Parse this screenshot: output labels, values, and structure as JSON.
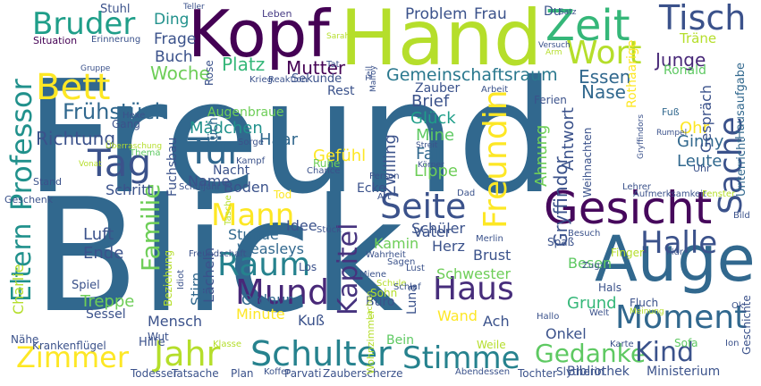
{
  "cloud": {
    "words": [
      {
        "text": "Freund",
        "color": "#31688e"
      },
      {
        "text": "Blick",
        "color": "#31688e"
      },
      {
        "text": "Hand",
        "color": "#b5de2b"
      },
      {
        "text": "Kopf",
        "color": "#440154"
      },
      {
        "text": "Auge",
        "color": "#31688e"
      },
      {
        "text": "Gesicht",
        "color": "#46085c"
      },
      {
        "text": "Zeit",
        "color": "#35b779"
      },
      {
        "text": "Tisch",
        "color": "#3b528b"
      },
      {
        "text": "Wort",
        "color": "#b5de2b"
      },
      {
        "text": "Bruder",
        "color": "#1f9e89"
      },
      {
        "text": "Bett",
        "color": "#fde725"
      },
      {
        "text": "Tag",
        "color": "#3b528b"
      },
      {
        "text": "Tür",
        "color": "#31688e"
      },
      {
        "text": "Seite",
        "color": "#3b528b"
      },
      {
        "text": "Halle",
        "color": "#3b528b"
      },
      {
        "text": "Mann",
        "color": "#fde725"
      },
      {
        "text": "Raum",
        "color": "#26828e"
      },
      {
        "text": "Mund",
        "color": "#482878"
      },
      {
        "text": "Haus",
        "color": "#472d7b"
      },
      {
        "text": "Moment",
        "color": "#31688e"
      },
      {
        "text": "Zimmer",
        "color": "#fde725"
      },
      {
        "text": "Jahr",
        "color": "#b5de2b"
      },
      {
        "text": "Schulter",
        "color": "#26828e"
      },
      {
        "text": "Stimme",
        "color": "#26828e"
      },
      {
        "text": "Gedanke",
        "color": "#5ec962"
      },
      {
        "text": "Kind",
        "color": "#3b528b"
      },
      {
        "text": "Freundin",
        "color": "#fde725"
      },
      {
        "text": "Sache",
        "color": "#3b528b"
      },
      {
        "text": "Kapitel",
        "color": "#46337e"
      },
      {
        "text": "Professor",
        "color": "#21918c"
      },
      {
        "text": "Eltern",
        "color": "#21918c"
      },
      {
        "text": "Familie",
        "color": "#6ece58"
      },
      {
        "text": "Frühstück",
        "color": "#31688e"
      },
      {
        "text": "Gemeinschaftsraum",
        "color": "#2a788e"
      },
      {
        "text": "Woche",
        "color": "#6ece58"
      },
      {
        "text": "Platz",
        "color": "#35b779"
      },
      {
        "text": "Mutter",
        "color": "#440154"
      },
      {
        "text": "Junge",
        "color": "#482878"
      },
      {
        "text": "Essen",
        "color": "#31688e"
      },
      {
        "text": "Nase",
        "color": "#31688e"
      },
      {
        "text": "Problem",
        "color": "#3b528b"
      },
      {
        "text": "Frau",
        "color": "#3b528b"
      },
      {
        "text": "Frage",
        "color": "#3b528b"
      },
      {
        "text": "Ding",
        "color": "#21918c"
      },
      {
        "text": "Buch",
        "color": "#3b528b"
      },
      {
        "text": "Stuhl",
        "color": "#3b528b"
      },
      {
        "text": "Leben",
        "color": "#443983"
      },
      {
        "text": "Teller",
        "color": "#3b528b"
      },
      {
        "text": "Richtung",
        "color": "#3b528b"
      },
      {
        "text": "Mädchen",
        "color": "#21918c"
      },
      {
        "text": "Haar",
        "color": "#31688e"
      },
      {
        "text": "Brief",
        "color": "#3b528b"
      },
      {
        "text": "Glück",
        "color": "#1f9e89"
      },
      {
        "text": "Mine",
        "color": "#5ec962"
      },
      {
        "text": "Gefühl",
        "color": "#fde725"
      },
      {
        "text": "Fall",
        "color": "#31688e"
      },
      {
        "text": "Lippe",
        "color": "#6ece58"
      },
      {
        "text": "Zwilling",
        "color": "#3b528b"
      },
      {
        "text": "Antwort",
        "color": "#3b528b"
      },
      {
        "text": "Ahnung",
        "color": "#6ece58"
      },
      {
        "text": "Gryffindor",
        "color": "#3b528b"
      },
      {
        "text": "Ohr",
        "color": "#fde725"
      },
      {
        "text": "Ginny",
        "color": "#31688e"
      },
      {
        "text": "Leute",
        "color": "#31688e"
      },
      {
        "text": "Gespräch",
        "color": "#3b528b"
      },
      {
        "text": "Hausaufgabe",
        "color": "#31688e"
      },
      {
        "text": "Ronald",
        "color": "#5ec962"
      },
      {
        "text": "Rothaarige",
        "color": "#fde725"
      },
      {
        "text": "Träne",
        "color": "#b5de2b"
      },
      {
        "text": "Unterricht",
        "color": "#31688e"
      },
      {
        "text": "Fuchsbau",
        "color": "#3b528b"
      },
      {
        "text": "Schritt",
        "color": "#3b528b"
      },
      {
        "text": "Name",
        "color": "#3b528b"
      },
      {
        "text": "Boden",
        "color": "#3b528b"
      },
      {
        "text": "Stunde",
        "color": "#31688e"
      },
      {
        "text": "Idee",
        "color": "#3b528b"
      },
      {
        "text": "Vater",
        "color": "#3b528b"
      },
      {
        "text": "Schüler",
        "color": "#3b528b"
      },
      {
        "text": "Kamin",
        "color": "#6ece58"
      },
      {
        "text": "Herz",
        "color": "#3b528b"
      },
      {
        "text": "Brust",
        "color": "#3b528b"
      },
      {
        "text": "Schwester",
        "color": "#6ece58"
      },
      {
        "text": "Besen",
        "color": "#5ec962"
      },
      {
        "text": "Grund",
        "color": "#35b779"
      },
      {
        "text": "Luft",
        "color": "#3b528b"
      },
      {
        "text": "Ende",
        "color": "#3b528b"
      },
      {
        "text": "Treppe",
        "color": "#6ece58"
      },
      {
        "text": "Sessel",
        "color": "#3b528b"
      },
      {
        "text": "Spiel",
        "color": "#3b528b"
      },
      {
        "text": "Charlie",
        "color": "#b5de2b"
      },
      {
        "text": "Stirn",
        "color": "#31688e"
      },
      {
        "text": "Lächeln",
        "color": "#3b528b"
      },
      {
        "text": "Weasleys",
        "color": "#31688e"
      },
      {
        "text": "Ordnung",
        "color": "#31688e"
      },
      {
        "text": "Minute",
        "color": "#fde725"
      },
      {
        "text": "Mensch",
        "color": "#3b528b"
      },
      {
        "text": "Kuß",
        "color": "#3b528b"
      },
      {
        "text": "Wand",
        "color": "#fde725"
      },
      {
        "text": "Ach",
        "color": "#3b528b"
      },
      {
        "text": "Onkel",
        "color": "#3b528b"
      },
      {
        "text": "Luna",
        "color": "#3b528b"
      },
      {
        "text": "Bein",
        "color": "#5ec962"
      },
      {
        "text": "Büro",
        "color": "#3b528b"
      },
      {
        "text": "Hilfe",
        "color": "#3b528b"
      },
      {
        "text": "Wut",
        "color": "#3b528b"
      },
      {
        "text": "Küche",
        "color": "#31688e"
      },
      {
        "text": "Augenbraue",
        "color": "#6ece58"
      },
      {
        "text": "Rose",
        "color": "#3b528b"
      },
      {
        "text": "Situation",
        "color": "#440154"
      },
      {
        "text": "Erinnerung",
        "color": "#3b528b"
      },
      {
        "text": "Gruppe",
        "color": "#3b528b"
      },
      {
        "text": "Hexe",
        "color": "#3b528b"
      },
      {
        "text": "Gang",
        "color": "#3b528b"
      },
      {
        "text": "Überraschung",
        "color": "#b5de2b"
      },
      {
        "text": "Vonat",
        "color": "#b5de2b"
      },
      {
        "text": "Stand",
        "color": "#3b528b"
      },
      {
        "text": "Geschenk",
        "color": "#3b528b"
      },
      {
        "text": "Thema",
        "color": "#5ec962"
      },
      {
        "text": "Nacht",
        "color": "#3b528b"
      },
      {
        "text": "Schuljahr",
        "color": "#3b528b"
      },
      {
        "text": "Tod",
        "color": "#fde725"
      },
      {
        "text": "Ecke",
        "color": "#3b528b"
      },
      {
        "text": "Ruhe",
        "color": "#6ece58"
      },
      {
        "text": "Chance",
        "color": "#3b528b"
      },
      {
        "text": "Person",
        "color": "#3b528b"
      },
      {
        "text": "Körper",
        "color": "#3b528b"
      },
      {
        "text": "Streit",
        "color": "#3b528b"
      },
      {
        "text": "Zauber",
        "color": "#3b528b"
      },
      {
        "text": "Rest",
        "color": "#3b528b"
      },
      {
        "text": "Sekunde",
        "color": "#3b528b"
      },
      {
        "text": "Arbeit",
        "color": "#3b528b"
      },
      {
        "text": "Ferien",
        "color": "#3b528b"
      },
      {
        "text": "Weihnachten",
        "color": "#3b528b"
      },
      {
        "text": "Fuß",
        "color": "#31688e"
      },
      {
        "text": "Uhr",
        "color": "#3b528b"
      },
      {
        "text": "Lehrer",
        "color": "#3b528b"
      },
      {
        "text": "Aufmerksamkeit",
        "color": "#3b528b"
      },
      {
        "text": "Fenster",
        "color": "#b5de2b"
      },
      {
        "text": "Bild",
        "color": "#3b528b"
      },
      {
        "text": "Besuch",
        "color": "#3b528b"
      },
      {
        "text": "Spaß",
        "color": "#3b528b"
      },
      {
        "text": "Finger",
        "color": "#b5de2b"
      },
      {
        "text": "Flur",
        "color": "#3b528b"
      },
      {
        "text": "Zug",
        "color": "#3b528b"
      },
      {
        "text": "Hals",
        "color": "#3b528b"
      },
      {
        "text": "Fluch",
        "color": "#3b528b"
      },
      {
        "text": "Meinung",
        "color": "#b5de2b"
      },
      {
        "text": "Welt",
        "color": "#3b528b"
      },
      {
        "text": "Hallo",
        "color": "#3b528b"
      },
      {
        "text": "Ok",
        "color": "#3b528b"
      },
      {
        "text": "Geschichte",
        "color": "#3b528b"
      },
      {
        "text": "Karte",
        "color": "#3b528b"
      },
      {
        "text": "Sofa",
        "color": "#5ec962"
      },
      {
        "text": "Ion",
        "color": "#3b528b"
      },
      {
        "text": "Weile",
        "color": "#b5de2b"
      },
      {
        "text": "Tochter",
        "color": "#3b528b"
      },
      {
        "text": "Slytherin",
        "color": "#3b528b"
      },
      {
        "text": "Bibliothek",
        "color": "#3b528b"
      },
      {
        "text": "Ministerium",
        "color": "#3b528b"
      },
      {
        "text": "Abendessen",
        "color": "#3b528b"
      },
      {
        "text": "Zauberscherze",
        "color": "#3b528b"
      },
      {
        "text": "Parvati",
        "color": "#3b528b"
      },
      {
        "text": "Koffer",
        "color": "#3b528b"
      },
      {
        "text": "Plan",
        "color": "#3b528b"
      },
      {
        "text": "Tatsache",
        "color": "#3b528b"
      },
      {
        "text": "Todesser",
        "color": "#3b528b"
      },
      {
        "text": "Klasse",
        "color": "#b5de2b"
      },
      {
        "text": "Krankenflügel",
        "color": "#3b528b"
      },
      {
        "text": "Nähe",
        "color": "#3b528b"
      },
      {
        "text": "Wohnzimmer",
        "color": "#b5de2b"
      },
      {
        "text": "Schule",
        "color": "#b5de2b"
      },
      {
        "text": "Schlaf",
        "color": "#3b528b"
      },
      {
        "text": "Lachen",
        "color": "#b5de2b"
      },
      {
        "text": "Sohn",
        "color": "#b5de2b"
      },
      {
        "text": "Miene",
        "color": "#3b528b"
      },
      {
        "text": "Lust",
        "color": "#3b528b"
      },
      {
        "text": "Sagen",
        "color": "#3b528b"
      },
      {
        "text": "Wahrheit",
        "color": "#3b528b"
      },
      {
        "text": "Los",
        "color": "#3b528b"
      },
      {
        "text": "Merlin",
        "color": "#3b528b"
      },
      {
        "text": "Stück",
        "color": "#3b528b"
      },
      {
        "text": "Art",
        "color": "#3b528b"
      },
      {
        "text": "Dad",
        "color": "#3b528b"
      },
      {
        "text": "Tasche",
        "color": "#b5de2b"
      },
      {
        "text": "Beziehung",
        "color": "#b5de2b"
      },
      {
        "text": "Idiot",
        "color": "#3b528b"
      },
      {
        "text": "Freundschaft",
        "color": "#3b528b"
      },
      {
        "text": "Kampf",
        "color": "#3b528b"
      },
      {
        "text": "Sorge",
        "color": "#3b528b"
      },
      {
        "text": "Krieg",
        "color": "#3b528b"
      },
      {
        "text": "Reaktion",
        "color": "#3b528b"
      },
      {
        "text": "Tat",
        "color": "#3b528b"
      },
      {
        "text": "Teil",
        "color": "#3b528b"
      },
      {
        "text": "Sarah",
        "color": "#b5de2b"
      },
      {
        "text": "Malfoy",
        "color": "#3b528b"
      },
      {
        "text": "Du",
        "color": "#3b528b"
      },
      {
        "text": "Satz",
        "color": "#3b528b"
      },
      {
        "text": "Versuch",
        "color": "#3b528b"
      },
      {
        "text": "Arm",
        "color": "#b5de2b"
      },
      {
        "text": "Rumpel",
        "color": "#3b528b"
      },
      {
        "text": "Gryffindors",
        "color": "#3b528b"
      }
    ]
  }
}
